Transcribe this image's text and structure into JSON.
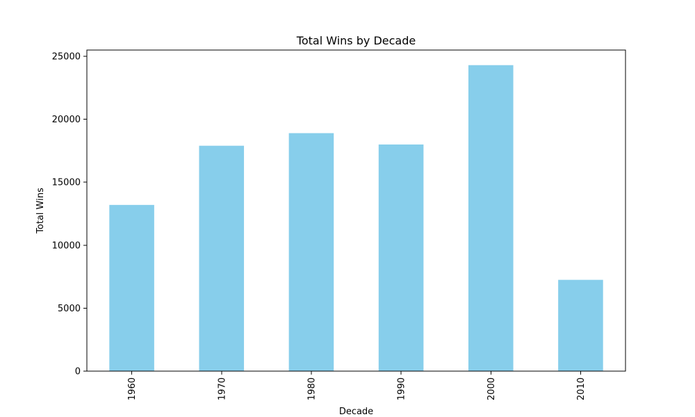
{
  "chart_data": {
    "type": "bar",
    "title": "Total Wins by Decade",
    "xlabel": "Decade",
    "ylabel": "Total Wins",
    "categories": [
      "1960",
      "1970",
      "1980",
      "1990",
      "2000",
      "2010"
    ],
    "values": [
      13200,
      17900,
      18900,
      18000,
      24300,
      7250
    ],
    "ylim": [
      0,
      25500
    ],
    "yticks": [
      0,
      5000,
      10000,
      15000,
      20000,
      25000
    ],
    "ytick_labels": [
      "0",
      "5000",
      "10000",
      "15000",
      "20000",
      "25000"
    ],
    "bar_color": "#87ceeb",
    "grid": false,
    "legend": "none"
  }
}
